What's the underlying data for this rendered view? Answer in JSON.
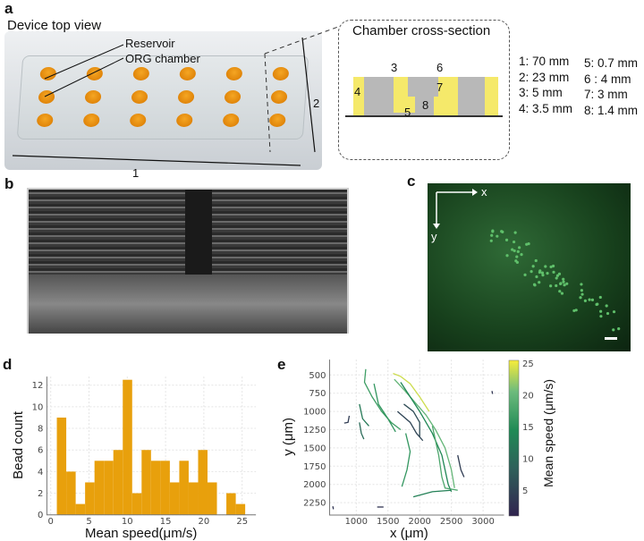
{
  "panels": {
    "a": "a",
    "b": "b",
    "c": "c",
    "d": "d",
    "e": "e"
  },
  "panel_a": {
    "title": "Device top view",
    "reservoir": "Reservoir",
    "org_chamber": "ORG chamber",
    "dim1": "1",
    "dim2": "2",
    "cross_section_title": "Chamber cross-section",
    "cs_labels": [
      "3",
      "6",
      "4",
      "7",
      "8",
      "5"
    ],
    "legend": [
      "1: 70  mm",
      "2: 23  mm",
      "3: 5     mm",
      "4: 3.5 mm",
      "5: 0.7  mm",
      "6 : 4     mm",
      "7: 3     mm",
      "8: 1.4  mm"
    ],
    "colors": {
      "reservoir": "#e8900f",
      "pdms": "#f5e96a",
      "chamber": "#b8b8b8"
    }
  },
  "panel_c": {
    "x_axis": "x",
    "y_axis": "y",
    "colors": {
      "background": "#1c4a22",
      "beads": "#5fbf6a"
    }
  },
  "chart_data": [
    {
      "type": "bar",
      "panel": "d",
      "xlabel": "Mean speed(μm/s)",
      "ylabel": "Bead count",
      "xlim": [
        -0.5,
        26.8
      ],
      "ylim": [
        0,
        12.8
      ],
      "grid": true,
      "xticks": [
        0,
        5,
        10,
        15,
        20,
        25
      ],
      "yticks": [
        0,
        2,
        4,
        6,
        8,
        10,
        12
      ],
      "bin_start": 0.8,
      "bin_width": 1.23,
      "values": [
        9,
        4,
        1,
        3,
        5,
        5,
        6,
        12.5,
        2,
        6,
        5,
        5,
        3,
        5,
        3,
        6,
        3,
        0,
        2,
        1
      ],
      "color": "#e8a00c"
    },
    {
      "type": "line",
      "panel": "e",
      "xlabel": "x (μm)",
      "ylabel": "y (μm)",
      "xlim": [
        580,
        3330
      ],
      "ylim": [
        2420,
        290
      ],
      "y_inverted": true,
      "grid": true,
      "xticks": [
        1000,
        1500,
        2000,
        2500,
        3000
      ],
      "yticks": [
        500,
        750,
        1000,
        1250,
        1500,
        1750,
        2000,
        2250
      ],
      "colorbar": {
        "label": "Mean speed  (μm/s)",
        "range": [
          1,
          25.5
        ],
        "ticks": [
          5,
          10,
          15,
          20,
          25
        ],
        "colormap": "viridis"
      },
      "tracks": [
        {
          "speed": 17,
          "points": [
            [
              1150,
              420
            ],
            [
              1130,
              600
            ],
            [
              1250,
              800
            ],
            [
              1400,
              1000
            ],
            [
              1550,
              1150
            ],
            [
              1700,
              1250
            ]
          ]
        },
        {
          "speed": 16,
          "points": [
            [
              1280,
              620
            ],
            [
              1350,
              900
            ],
            [
              1500,
              1100
            ],
            [
              1620,
              1280
            ]
          ]
        },
        {
          "speed": 24,
          "points": [
            [
              1580,
              480
            ],
            [
              1700,
              520
            ],
            [
              1850,
              620
            ],
            [
              2000,
              800
            ],
            [
              2150,
              1000
            ]
          ]
        },
        {
          "speed": 20,
          "points": [
            [
              1600,
              560
            ],
            [
              1750,
              700
            ],
            [
              1950,
              900
            ],
            [
              2100,
              1050
            ],
            [
              2250,
              1250
            ],
            [
              2400,
              1500
            ],
            [
              2500,
              1800
            ],
            [
              2550,
              2050
            ]
          ]
        },
        {
          "speed": 14,
          "points": [
            [
              1700,
              600
            ],
            [
              1850,
              800
            ],
            [
              2000,
              1000
            ],
            [
              2200,
              1300
            ],
            [
              2350,
              1600
            ],
            [
              2450,
              2000
            ],
            [
              2500,
              2100
            ]
          ]
        },
        {
          "speed": 6,
          "points": [
            [
              1750,
              900
            ],
            [
              1900,
              1000
            ],
            [
              2000,
              1150
            ],
            [
              2000,
              1350
            ]
          ]
        },
        {
          "speed": 5,
          "points": [
            [
              1650,
              1000
            ],
            [
              1850,
              1150
            ],
            [
              1950,
              1300
            ],
            [
              2050,
              1400
            ]
          ]
        },
        {
          "speed": 16,
          "points": [
            [
              1780,
              1300
            ],
            [
              1850,
              1550
            ],
            [
              1800,
              1800
            ],
            [
              1720,
              2030
            ]
          ]
        },
        {
          "speed": 18,
          "points": [
            [
              2200,
              1200
            ],
            [
              2300,
              1600
            ],
            [
              2350,
              1900
            ],
            [
              2400,
              2050
            ],
            [
              2600,
              2080
            ]
          ]
        },
        {
          "speed": 13,
          "points": [
            [
              1900,
              2170
            ],
            [
              2200,
              2100
            ],
            [
              2500,
              2080
            ]
          ]
        },
        {
          "speed": 4,
          "points": [
            [
              2600,
              1600
            ],
            [
              2650,
              1800
            ],
            [
              2700,
              1900
            ]
          ]
        },
        {
          "speed": 12,
          "points": [
            [
              1050,
              900
            ],
            [
              1100,
              1100
            ],
            [
              1200,
              1200
            ]
          ]
        },
        {
          "speed": 10,
          "points": [
            [
              1050,
              1150
            ],
            [
              1080,
              1300
            ],
            [
              1120,
              1380
            ]
          ]
        },
        {
          "speed": 4,
          "points": [
            [
              810,
              1160
            ],
            [
              870,
              1150
            ],
            [
              890,
              1060
            ]
          ]
        },
        {
          "speed": 3,
          "points": [
            [
              1330,
              2310
            ],
            [
              1430,
              2310
            ]
          ]
        },
        {
          "speed": 3,
          "points": [
            [
              630,
              2300
            ],
            [
              640,
              2340
            ]
          ]
        },
        {
          "speed": 3,
          "points": [
            [
              3140,
              720
            ],
            [
              3150,
              760
            ]
          ]
        }
      ]
    }
  ]
}
